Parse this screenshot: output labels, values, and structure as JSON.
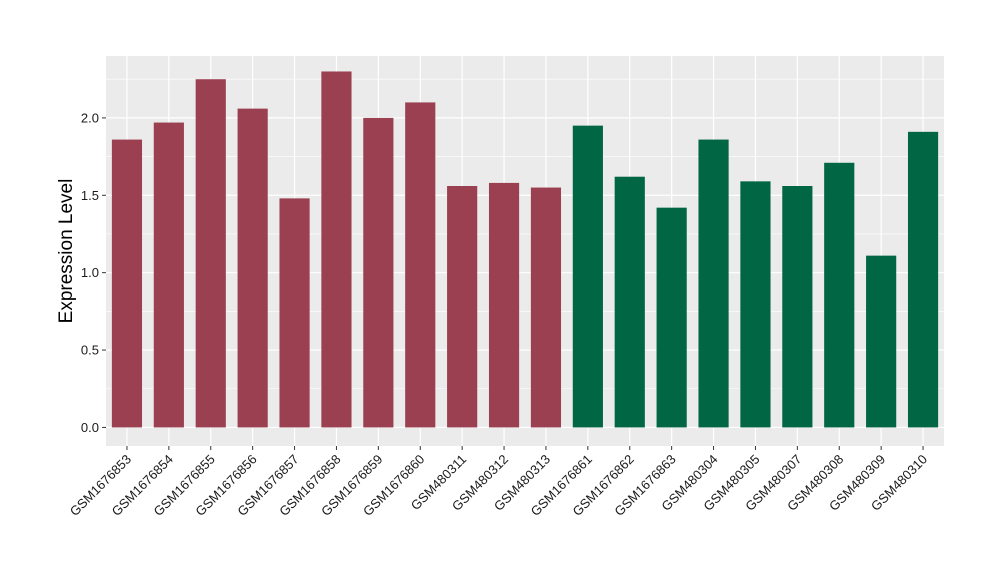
{
  "chart_data": {
    "type": "bar",
    "title": "",
    "xlabel": "",
    "ylabel": "Expression Level",
    "ylim": [
      -0.12,
      2.4
    ],
    "yticks": [
      0.0,
      0.5,
      1.0,
      1.5,
      2.0
    ],
    "ytick_labels": [
      "0.0",
      "0.5",
      "1.0",
      "1.5",
      "2.0"
    ],
    "grid": true,
    "legend": "none",
    "categories": [
      "GSM1676853",
      "GSM1676854",
      "GSM1676855",
      "GSM1676856",
      "GSM1676857",
      "GSM1676858",
      "GSM1676859",
      "GSM1676860",
      "GSM480311",
      "GSM480312",
      "GSM480313",
      "GSM1676861",
      "GSM1676862",
      "GSM1676863",
      "GSM480304",
      "GSM480305",
      "GSM480307",
      "GSM480308",
      "GSM480309",
      "GSM480310"
    ],
    "values": [
      1.86,
      1.97,
      2.25,
      2.06,
      1.48,
      2.3,
      2.0,
      2.1,
      1.56,
      1.58,
      1.55,
      1.95,
      1.62,
      1.42,
      1.86,
      1.59,
      1.56,
      1.71,
      1.11,
      1.91
    ],
    "bar_groups": [
      0,
      0,
      0,
      0,
      0,
      0,
      0,
      0,
      0,
      0,
      0,
      1,
      1,
      1,
      1,
      1,
      1,
      1,
      1,
      1
    ],
    "group_colors": [
      "#9a4050",
      "#006644"
    ],
    "panel_color": "#ebebeb",
    "grid_color": "#ffffff"
  }
}
